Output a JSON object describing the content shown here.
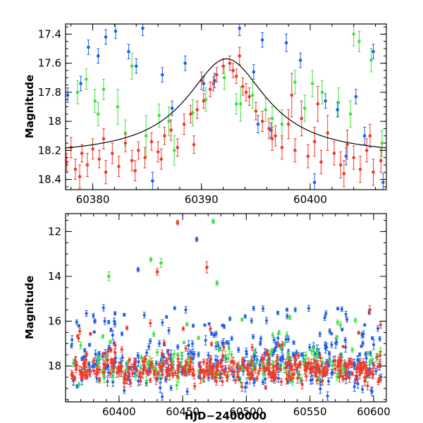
{
  "colors": {
    "blue": "#1f5fe6",
    "green": "#3fe03f",
    "red": "#f03a2a",
    "model": "#000000"
  },
  "chart_data": [
    {
      "type": "scatter",
      "xlabel": "",
      "ylabel": "Magnitude",
      "xlim": [
        60377.5,
        60407.0
      ],
      "ylim": [
        18.47,
        17.33
      ],
      "y_inverted": true,
      "grid": false,
      "xticks": [
        60380,
        60390,
        60400
      ],
      "xtick_labels": [
        "60380",
        "60390",
        "60400"
      ],
      "yticks": [
        17.4,
        17.6,
        17.8,
        18.0,
        18.2,
        18.4
      ],
      "ytick_labels": [
        "17.4",
        "17.6",
        "17.8",
        "18",
        "18.2",
        "18.4"
      ],
      "model_curve": {
        "type": "lorentzian",
        "baseline": 18.24,
        "peak_mag": 17.57,
        "t0": 60392.3,
        "half_width": 4.5
      },
      "series": [
        {
          "color": "red",
          "x": [
            60377.6,
            60378.0,
            60378.4,
            60379.0,
            60379.5,
            60380.0,
            60380.6,
            60381.2,
            60381.8,
            60382.4,
            60383.0,
            60383.6,
            60384.2,
            60384.8,
            60385.4,
            60386.0,
            60386.6,
            60387.2,
            60387.8,
            60388.4,
            60389.0,
            60389.6,
            60390.2,
            60390.8,
            60391.4,
            60392.0,
            60392.6,
            60393.2,
            60393.8,
            60394.4,
            60395.0,
            60395.6,
            60396.2,
            60396.8,
            60397.4,
            60398.0,
            60398.6,
            60399.2,
            60399.8,
            60400.4,
            60401.0,
            60401.6,
            60402.2,
            60402.8,
            60403.4,
            60404.0,
            60404.6,
            60405.2,
            60405.8,
            60406.5,
            60378.8,
            60381.0,
            60383.9,
            60386.3,
            60389.3,
            60391.1,
            60392.9,
            60394.1,
            60396.5,
            60398.3,
            60400.7,
            60403.1,
            60405.5,
            60390.0,
            60393.5
          ],
          "y": [
            18.28,
            18.18,
            18.33,
            18.22,
            18.3,
            18.19,
            18.26,
            18.35,
            18.22,
            18.31,
            18.15,
            18.27,
            18.2,
            18.25,
            18.14,
            18.21,
            18.1,
            18.06,
            18.18,
            18.02,
            17.95,
            17.92,
            17.86,
            17.78,
            17.68,
            17.62,
            17.6,
            17.69,
            17.76,
            17.83,
            17.93,
            18.0,
            18.05,
            18.1,
            18.18,
            18.02,
            18.2,
            17.98,
            18.24,
            18.14,
            18.28,
            18.08,
            18.22,
            18.3,
            18.16,
            18.25,
            18.33,
            18.2,
            18.35,
            18.27,
            18.38,
            18.12,
            18.34,
            18.26,
            18.16,
            17.74,
            17.65,
            17.8,
            18.12,
            17.82,
            17.88,
            18.36,
            18.1,
            17.72,
            17.55
          ],
          "err": [
            0.06,
            0.07,
            0.07,
            0.06,
            0.08,
            0.07,
            0.06,
            0.08,
            0.07,
            0.07,
            0.06,
            0.07,
            0.06,
            0.07,
            0.06,
            0.07,
            0.06,
            0.07,
            0.06,
            0.07,
            0.06,
            0.06,
            0.05,
            0.05,
            0.05,
            0.05,
            0.05,
            0.05,
            0.06,
            0.06,
            0.06,
            0.07,
            0.07,
            0.07,
            0.08,
            0.1,
            0.08,
            0.12,
            0.08,
            0.1,
            0.08,
            0.12,
            0.08,
            0.09,
            0.1,
            0.08,
            0.09,
            0.08,
            0.09,
            0.08,
            0.08,
            0.07,
            0.07,
            0.07,
            0.06,
            0.05,
            0.05,
            0.06,
            0.08,
            0.15,
            0.12,
            0.09,
            0.08,
            0.06,
            0.06
          ]
        },
        {
          "color": "green",
          "x": [
            60378.6,
            60379.4,
            60380.2,
            60381.0,
            60382.3,
            60383.6,
            60384.9,
            60386.1,
            60387.5,
            60389.2,
            60390.4,
            60392.1,
            60393.6,
            60394.7,
            60395.9,
            60397.4,
            60398.6,
            60399.5,
            60401.1,
            60402.6,
            60403.7,
            60404.5,
            60405.6,
            60406.6,
            60380.5,
            60383.0,
            60387.0,
            60393.2,
            60396.5,
            60400.2,
            60404.0
          ],
          "y": [
            17.8,
            17.71,
            17.86,
            17.78,
            17.9,
            17.62,
            18.1,
            17.96,
            18.2,
            17.94,
            17.85,
            17.7,
            17.88,
            17.82,
            17.92,
            18.02,
            17.73,
            17.91,
            17.8,
            17.87,
            17.95,
            17.45,
            17.58,
            18.15,
            17.95,
            18.08,
            18.0,
            17.88,
            17.98,
            17.74,
            17.4
          ],
          "err": [
            0.08,
            0.07,
            0.08,
            0.07,
            0.12,
            0.09,
            0.14,
            0.08,
            0.1,
            0.09,
            0.08,
            0.08,
            0.12,
            0.09,
            0.08,
            0.1,
            0.08,
            0.09,
            0.08,
            0.1,
            0.09,
            0.07,
            0.08,
            0.09,
            0.08,
            0.09,
            0.1,
            0.07,
            0.08,
            0.09,
            0.08
          ]
        },
        {
          "color": "blue",
          "x": [
            60377.7,
            60378.9,
            60379.6,
            60380.5,
            60381.2,
            60382.1,
            60383.3,
            60384.6,
            60385.5,
            60386.4,
            60387.3,
            60388.5,
            60390.2,
            60391.2,
            60393.5,
            60394.8,
            60395.6,
            60396.4,
            60397.8,
            60399.1,
            60400.4,
            60401.4,
            60402.5,
            60403.3,
            60404.2,
            60405.0,
            60405.8,
            60406.7,
            60384.0,
            60395.2
          ],
          "y": [
            17.82,
            17.74,
            17.49,
            17.55,
            17.42,
            17.38,
            17.52,
            17.36,
            18.41,
            17.68,
            17.91,
            17.6,
            17.74,
            17.72,
            17.36,
            17.66,
            17.44,
            18.06,
            17.46,
            17.58,
            18.42,
            17.86,
            17.92,
            18.24,
            17.83,
            18.1,
            17.52,
            18.42,
            17.62,
            18.02
          ],
          "err": [
            0.05,
            0.05,
            0.05,
            0.05,
            0.05,
            0.05,
            0.05,
            0.05,
            0.06,
            0.05,
            0.05,
            0.05,
            0.05,
            0.05,
            0.05,
            0.05,
            0.05,
            0.05,
            0.06,
            0.05,
            0.06,
            0.05,
            0.05,
            0.06,
            0.05,
            0.06,
            0.05,
            0.06,
            0.05,
            0.06
          ]
        }
      ]
    },
    {
      "type": "scatter",
      "xlabel": "HJD−2400000",
      "ylabel": "Magnitude",
      "xlim": [
        60358,
        60610
      ],
      "ylim": [
        19.6,
        11.2
      ],
      "y_inverted": true,
      "grid": false,
      "xticks": [
        60400,
        60450,
        60500,
        60550,
        60600
      ],
      "xtick_labels": [
        "60400",
        "60450",
        "60500",
        "60550",
        "60600"
      ],
      "yticks": [
        12,
        14,
        16,
        18
      ],
      "ytick_labels": [
        "12",
        "14",
        "16",
        "18"
      ],
      "bulk": {
        "x_range": [
          60362,
          60606
        ],
        "red": {
          "count": 340,
          "center": 18.2,
          "spread": 0.28,
          "outlier_count": 30,
          "outlier_range": [
            15.9,
            17.8
          ]
        },
        "blue": {
          "count": 260,
          "center": 18.0,
          "spread": 0.55,
          "outlier_count": 95,
          "outlier_range": [
            15.4,
            17.6
          ]
        },
        "green": {
          "count": 120,
          "center": 18.0,
          "spread": 0.35,
          "outlier_count": 30,
          "outlier_range": [
            15.8,
            17.6
          ]
        }
      },
      "outliers": [
        {
          "color": "red",
          "x": 60446,
          "y": 11.6,
          "err": 0.1
        },
        {
          "color": "red",
          "x": 60430,
          "y": 13.8,
          "err": 0.15
        },
        {
          "color": "red",
          "x": 60469,
          "y": 13.6,
          "err": 0.25
        },
        {
          "color": "red",
          "x": 60597,
          "y": 15.5,
          "err": 0.2
        },
        {
          "color": "green",
          "x": 60474,
          "y": 11.55,
          "err": 0.1
        },
        {
          "color": "green",
          "x": 60433,
          "y": 13.4,
          "err": 0.2
        },
        {
          "color": "green",
          "x": 60392,
          "y": 14.0,
          "err": 0.2
        },
        {
          "color": "green",
          "x": 60477,
          "y": 14.3,
          "err": 0.1
        },
        {
          "color": "green",
          "x": 60425,
          "y": 13.25,
          "err": 0.1
        },
        {
          "color": "blue",
          "x": 60461,
          "y": 12.35,
          "err": 0.1
        },
        {
          "color": "blue",
          "x": 60415,
          "y": 13.7,
          "err": 0.1
        },
        {
          "color": "blue",
          "x": 60381,
          "y": 16.0,
          "err": 0.1
        }
      ]
    }
  ]
}
